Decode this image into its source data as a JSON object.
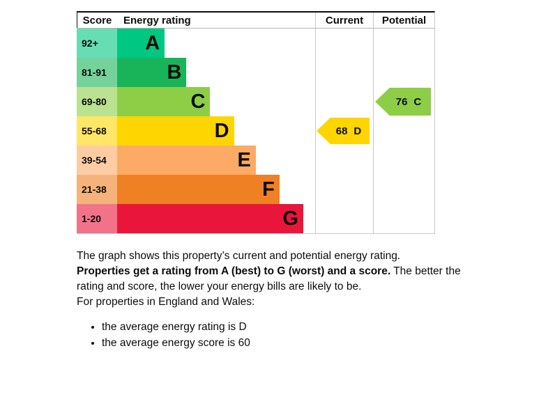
{
  "chart_data": {
    "type": "bar",
    "headers": {
      "score": "Score",
      "rating": "Energy rating",
      "current": "Current",
      "potential": "Potential"
    },
    "bands": [
      {
        "score_range": "92+",
        "letter": "A",
        "color": "#00c781",
        "width_pct": 24
      },
      {
        "score_range": "81-91",
        "letter": "B",
        "color": "#19b459",
        "width_pct": 35
      },
      {
        "score_range": "69-80",
        "letter": "C",
        "color": "#8dce46",
        "width_pct": 47
      },
      {
        "score_range": "55-68",
        "letter": "D",
        "color": "#ffd500",
        "width_pct": 59
      },
      {
        "score_range": "39-54",
        "letter": "E",
        "color": "#fcaa65",
        "width_pct": 70
      },
      {
        "score_range": "21-38",
        "letter": "F",
        "color": "#ef8023",
        "width_pct": 82
      },
      {
        "score_range": "1-20",
        "letter": "G",
        "color": "#e9153b",
        "width_pct": 94
      }
    ],
    "current": {
      "value": "68",
      "band": "D",
      "color": "#ffd500"
    },
    "potential": {
      "value": "76",
      "band": "C",
      "color": "#8dce46"
    }
  },
  "content": {
    "intro": "The graph shows this property’s current and potential energy rating.",
    "rating_bold": "Properties get a rating from A (best) to G (worst) and a score.",
    "rating_rest": " The better the rating and score, the lower your energy bills are likely to be.",
    "regions_heading": "For properties in England and Wales:",
    "bullets": [
      "the average energy rating is D",
      "the average energy score is 60"
    ]
  }
}
